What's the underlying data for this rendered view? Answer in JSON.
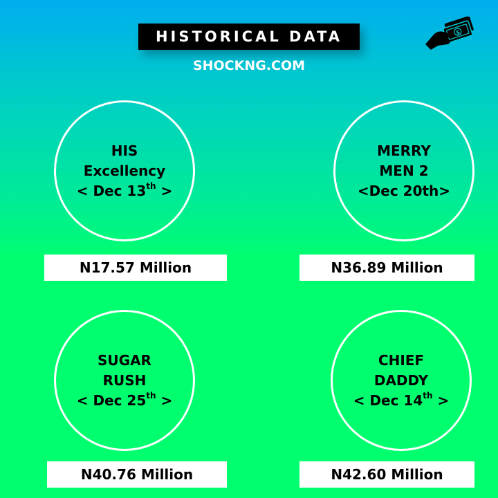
{
  "header": {
    "title": "HISTORICAL DATA",
    "subtitle": "SHOCKNG.COM",
    "logo_icon": "hand-money-icon"
  },
  "movies": [
    {
      "line1": "HIS",
      "line2": "Excellency",
      "date_open": "< Dec 13",
      "date_sup": "th",
      "date_close": " >",
      "amount": "N17.57 Million"
    },
    {
      "line1": "MERRY",
      "line2": "MEN 2",
      "date_open": "<Dec 20th>",
      "date_sup": "",
      "date_close": "",
      "amount": "N36.89 Million"
    },
    {
      "line1": "SUGAR",
      "line2": "RUSH",
      "date_open": "< Dec 25",
      "date_sup": "th",
      "date_close": " >",
      "amount": "N40.76 Million"
    },
    {
      "line1": "CHIEF",
      "line2": "DADDY",
      "date_open": "< Dec 14",
      "date_sup": "th",
      "date_close": " >",
      "amount": "N42.60 Million"
    }
  ],
  "colors": {
    "gradient_top": "#00aef0",
    "gradient_bottom": "#00ff6e",
    "title_bg": "#000000",
    "text": "#ffffff"
  }
}
